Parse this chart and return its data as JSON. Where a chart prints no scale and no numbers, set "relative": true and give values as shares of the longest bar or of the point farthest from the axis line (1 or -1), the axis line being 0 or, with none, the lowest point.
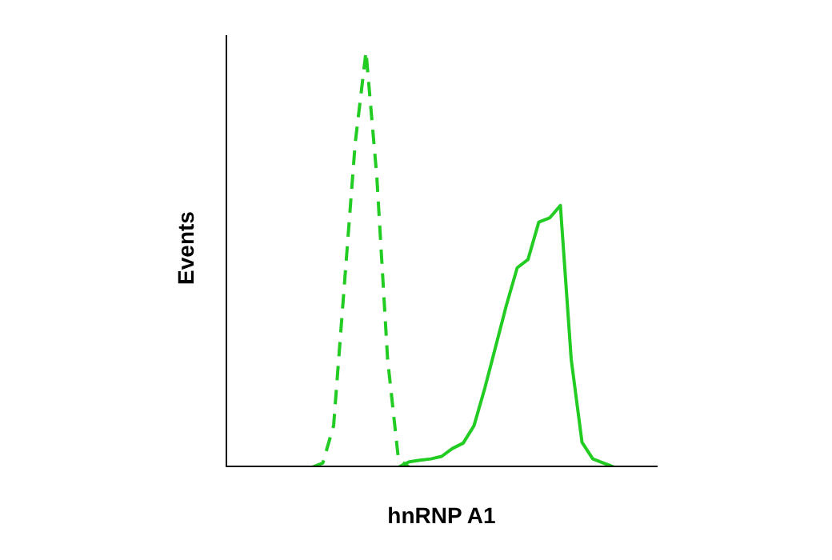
{
  "chart_data": {
    "type": "line",
    "xlabel": "hnRNP A1",
    "ylabel": "Events",
    "relative": true,
    "legend": false,
    "marker": "none",
    "categories": [
      null,
      null,
      null,
      null,
      null,
      null,
      null,
      null,
      null,
      null,
      null,
      null,
      null,
      null,
      null,
      null,
      null,
      null,
      null,
      null,
      null,
      null,
      null,
      null,
      null,
      null,
      null,
      null,
      null,
      null,
      null,
      null,
      null,
      null,
      null,
      null,
      null,
      null,
      null,
      null,
      null
    ],
    "series": [
      {
        "color": "#22cc22",
        "line_style": "dashed",
        "values": [
          null,
          null,
          null,
          null,
          null,
          null,
          null,
          null,
          0,
          0.01,
          0.1,
          0.44,
          0.78,
          1,
          0.7,
          0.26,
          0.02,
          0,
          null,
          null,
          null,
          null,
          null,
          null,
          null,
          null,
          null,
          null,
          null,
          null,
          null,
          null,
          null,
          null,
          null,
          null,
          null,
          null,
          null,
          null,
          null
        ]
      },
      {
        "color": "#22cc22",
        "line_style": "solid",
        "values": [
          null,
          null,
          null,
          null,
          null,
          null,
          null,
          null,
          null,
          null,
          null,
          null,
          null,
          null,
          null,
          null,
          0,
          0.013,
          0.017,
          0.02,
          0.026,
          0.045,
          0.058,
          0.1,
          0.19,
          0.29,
          0.39,
          0.48,
          0.5,
          0.59,
          0.6,
          0.63,
          0.26,
          0.06,
          0.02,
          0.01,
          0,
          0,
          null,
          null,
          null
        ]
      }
    ]
  }
}
